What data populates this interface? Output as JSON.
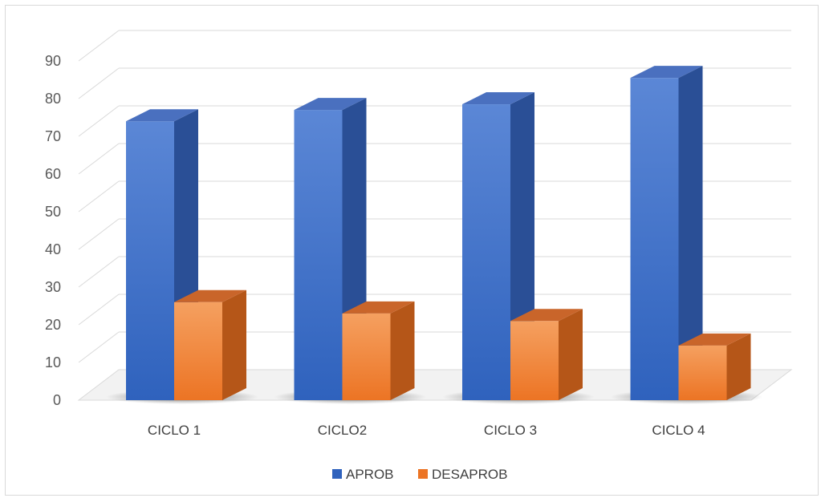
{
  "chart_data": {
    "type": "bar",
    "categories": [
      "CICLO 1",
      "CICLO2",
      "CICLO 3",
      "CICLO 4"
    ],
    "series": [
      {
        "name": "APROB",
        "values": [
          74,
          77,
          78.5,
          85.5
        ]
      },
      {
        "name": "DESAPROB",
        "values": [
          26,
          23,
          21,
          14.5
        ]
      }
    ],
    "title": "",
    "xlabel": "",
    "ylabel": "",
    "ylim": [
      0,
      90
    ],
    "yticks": [
      0,
      10,
      20,
      30,
      40,
      50,
      60,
      70,
      80,
      90
    ],
    "grid": true,
    "legend_position": "bottom",
    "colors": {
      "APROB": {
        "front_top": "#5b87d6",
        "front_bottom": "#2f62bd",
        "side": "#2a4f96",
        "top": "#4a70bf"
      },
      "DESAPROB": {
        "front_top": "#f5a060",
        "front_bottom": "#ec7424",
        "side": "#b55618",
        "top": "#c9652a"
      }
    }
  }
}
